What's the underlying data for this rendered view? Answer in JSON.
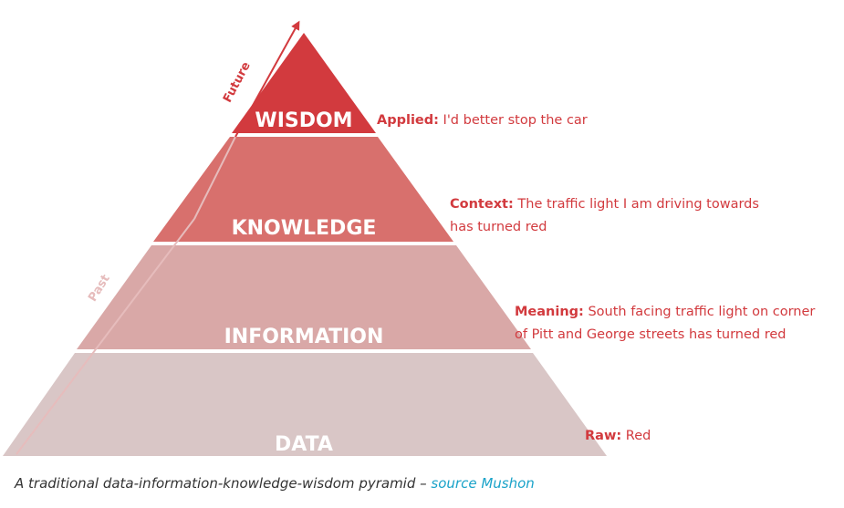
{
  "pyramid": {
    "levels": [
      {
        "label": "WISDOM",
        "color": "#d23a3e"
      },
      {
        "label": "KNOWLEDGE",
        "color": "#d8706d"
      },
      {
        "label": "INFORMATION",
        "color": "#d9a8a7"
      },
      {
        "label": "DATA",
        "color": "#d9c6c6"
      }
    ],
    "axis": {
      "future_label": "Future",
      "future_color": "#d23a3e",
      "past_label": "Past",
      "past_color": "#e6bcbc"
    }
  },
  "notes": {
    "wisdom": {
      "key": "Applied:",
      "text": " I'd better stop the car"
    },
    "knowledge": {
      "key": "Context:",
      "line1": " The traffic light I am driving towards",
      "line2": "has turned red"
    },
    "information": {
      "key": "Meaning:",
      "line1": " South facing traffic light on corner",
      "line2": "of Pitt and George streets has turned red"
    },
    "data": {
      "key": "Raw:",
      "text": " Red"
    }
  },
  "caption": {
    "text": "A traditional data-information-knowledge-wisdom pyramid – ",
    "link_text": "source Mushon",
    "link_color": "#1aa3c9"
  }
}
